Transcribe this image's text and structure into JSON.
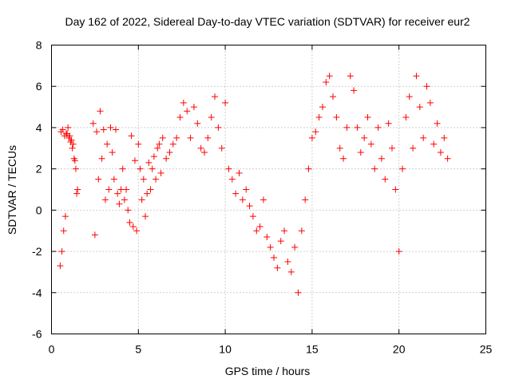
{
  "chart_data": {
    "type": "scatter",
    "title": "Day 162 of 2022, Sidereal Day-to-day VTEC variation (SDTVAR) for receiver eur2",
    "xlabel": "GPS time / hours",
    "ylabel": "SDTVAR / TECUs",
    "xlim": [
      0,
      25
    ],
    "ylim": [
      -6,
      8
    ],
    "xticks": [
      0,
      5,
      10,
      15,
      20,
      25
    ],
    "yticks": [
      -6,
      -4,
      -2,
      0,
      2,
      4,
      6,
      8
    ],
    "xtick_labels": [
      "0",
      "5",
      "10",
      "15",
      "20",
      "25"
    ],
    "ytick_labels": [
      "-6",
      "-4",
      "-2",
      "0",
      "2",
      "4",
      "6",
      "8"
    ],
    "grid": true,
    "marker": "+",
    "color": "#ff0000",
    "series": [
      {
        "name": "SDTVAR",
        "x": [
          0.5,
          0.6,
          0.7,
          0.8,
          0.9,
          1.0,
          1.1,
          1.2,
          1.3,
          1.4,
          1.5,
          0.55,
          0.65,
          0.75,
          0.85,
          0.95,
          1.05,
          1.15,
          1.25,
          1.35,
          1.45,
          2.4,
          2.5,
          2.6,
          2.7,
          2.8,
          2.9,
          3.0,
          3.1,
          3.2,
          3.3,
          3.4,
          3.5,
          3.6,
          3.7,
          3.8,
          3.9,
          4.0,
          4.1,
          4.2,
          4.3,
          4.4,
          4.5,
          4.6,
          4.7,
          4.8,
          4.9,
          5.0,
          5.1,
          5.2,
          5.3,
          5.4,
          5.5,
          5.6,
          5.7,
          5.8,
          5.9,
          6.0,
          6.1,
          6.2,
          6.3,
          6.4,
          6.6,
          6.8,
          7.0,
          7.2,
          7.4,
          7.6,
          7.8,
          8.0,
          8.2,
          8.4,
          8.6,
          8.8,
          9.0,
          9.2,
          9.4,
          9.6,
          9.8,
          10.0,
          10.2,
          10.4,
          10.6,
          10.8,
          11.0,
          11.2,
          11.4,
          11.6,
          11.8,
          12.0,
          12.2,
          12.4,
          12.6,
          12.8,
          13.0,
          13.2,
          13.4,
          13.6,
          13.8,
          14.0,
          14.2,
          14.4,
          14.6,
          14.8,
          15.0,
          15.2,
          15.4,
          15.6,
          15.8,
          16.0,
          16.2,
          16.4,
          16.6,
          16.8,
          17.0,
          17.2,
          17.4,
          17.6,
          17.8,
          18.0,
          18.2,
          18.4,
          18.6,
          18.8,
          19.0,
          19.2,
          19.4,
          19.6,
          19.8,
          20.0,
          20.2,
          20.4,
          20.6,
          20.8,
          21.0,
          21.2,
          21.4,
          21.6,
          21.8,
          22.0,
          22.2,
          22.4,
          22.6,
          22.8
        ],
        "y": [
          -2.7,
          -2.0,
          -1.0,
          -0.3,
          3.7,
          3.5,
          3.3,
          3.0,
          2.5,
          2.0,
          1.0,
          3.8,
          3.9,
          3.6,
          3.7,
          4.0,
          3.6,
          3.4,
          3.2,
          2.4,
          0.8,
          4.2,
          -1.2,
          3.8,
          1.5,
          4.8,
          2.5,
          3.9,
          0.5,
          3.2,
          1.0,
          4.0,
          2.8,
          1.5,
          3.9,
          0.8,
          0.3,
          1.0,
          2.0,
          0.5,
          1.0,
          0.0,
          -0.6,
          3.6,
          -0.8,
          2.4,
          -1.0,
          3.2,
          2.0,
          0.5,
          1.5,
          -0.3,
          0.8,
          2.3,
          1.0,
          2.0,
          2.6,
          1.5,
          3.0,
          3.2,
          1.8,
          3.5,
          2.5,
          2.8,
          3.2,
          3.5,
          4.5,
          5.2,
          4.8,
          3.5,
          5.0,
          4.2,
          3.0,
          2.8,
          3.5,
          4.5,
          5.5,
          4.0,
          3.0,
          5.2,
          2.0,
          1.5,
          0.8,
          1.8,
          0.5,
          1.0,
          0.2,
          -0.3,
          -1.0,
          -0.8,
          0.5,
          -1.3,
          -1.8,
          -2.3,
          -2.8,
          -1.5,
          -1.0,
          -2.5,
          -3.0,
          -1.8,
          -4.0,
          -1.0,
          0.5,
          2.0,
          3.5,
          3.8,
          4.5,
          5.0,
          6.2,
          6.5,
          5.5,
          4.5,
          3.0,
          2.5,
          4.0,
          6.5,
          5.8,
          4.0,
          2.8,
          3.5,
          4.5,
          3.2,
          2.0,
          4.0,
          2.5,
          1.5,
          4.2,
          3.0,
          1.0,
          -2.0,
          2.0,
          4.5,
          5.5,
          3.0,
          6.5,
          5.0,
          3.5,
          6.0,
          5.2,
          3.2,
          4.2,
          2.8,
          3.5,
          2.5
        ]
      }
    ]
  }
}
